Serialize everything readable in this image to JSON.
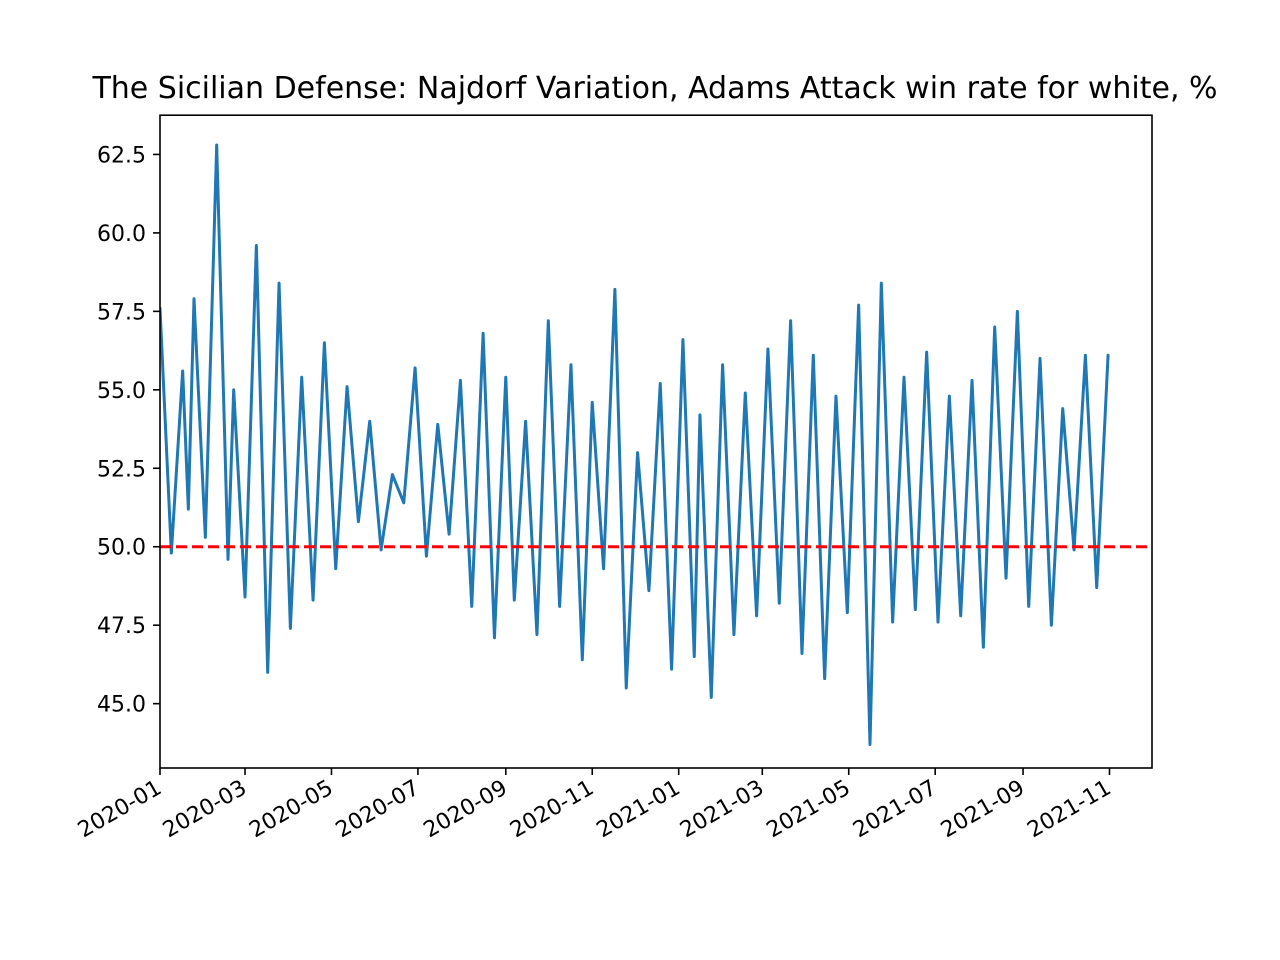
{
  "chart_data": {
    "type": "line",
    "title": "The Sicilian Defense: Najdorf Variation, Adams Attack win rate for white, %",
    "xlabel": "",
    "ylabel": "",
    "x_range": [
      "2020-01-01",
      "2021-12-01"
    ],
    "ylim": [
      42.95,
      63.75
    ],
    "x_ticks": [
      "2020-01",
      "2020-03",
      "2020-05",
      "2020-07",
      "2020-09",
      "2020-11",
      "2021-01",
      "2021-03",
      "2021-05",
      "2021-07",
      "2021-09",
      "2021-11"
    ],
    "y_ticks": [
      "45.0",
      "47.5",
      "50.0",
      "52.5",
      "55.0",
      "57.5",
      "60.0",
      "62.5"
    ],
    "grid": false,
    "legend": "none",
    "series": [
      {
        "color": "#1f77b4",
        "style": "solid",
        "x": [
          "2020-01-01",
          "2020-01-09",
          "2020-01-17",
          "2020-01-21",
          "2020-01-25",
          "2020-02-02",
          "2020-02-10",
          "2020-02-18",
          "2020-02-22",
          "2020-03-01",
          "2020-03-09",
          "2020-03-17",
          "2020-03-25",
          "2020-04-02",
          "2020-04-10",
          "2020-04-18",
          "2020-04-26",
          "2020-05-04",
          "2020-05-12",
          "2020-05-20",
          "2020-05-28",
          "2020-06-05",
          "2020-06-13",
          "2020-06-21",
          "2020-06-29",
          "2020-07-07",
          "2020-07-15",
          "2020-07-23",
          "2020-07-31",
          "2020-08-08",
          "2020-08-16",
          "2020-08-24",
          "2020-09-01",
          "2020-09-07",
          "2020-09-15",
          "2020-09-23",
          "2020-10-01",
          "2020-10-09",
          "2020-10-17",
          "2020-10-25",
          "2020-11-01",
          "2020-11-09",
          "2020-11-17",
          "2020-11-25",
          "2020-12-03",
          "2020-12-11",
          "2020-12-19",
          "2020-12-27",
          "2021-01-04",
          "2021-01-12",
          "2021-01-16",
          "2021-01-24",
          "2021-02-01",
          "2021-02-09",
          "2021-02-17",
          "2021-02-25",
          "2021-03-05",
          "2021-03-13",
          "2021-03-21",
          "2021-03-29",
          "2021-04-06",
          "2021-04-14",
          "2021-04-22",
          "2021-04-30",
          "2021-05-08",
          "2021-05-16",
          "2021-05-24",
          "2021-06-01",
          "2021-06-09",
          "2021-06-17",
          "2021-06-25",
          "2021-07-03",
          "2021-07-11",
          "2021-07-19",
          "2021-07-27",
          "2021-08-04",
          "2021-08-12",
          "2021-08-20",
          "2021-08-28",
          "2021-09-05",
          "2021-09-13",
          "2021-09-21",
          "2021-09-29",
          "2021-10-07",
          "2021-10-15",
          "2021-10-23",
          "2021-10-31"
        ],
        "values": [
          57.6,
          49.8,
          55.6,
          51.2,
          57.9,
          50.3,
          62.8,
          49.6,
          55.0,
          48.4,
          59.6,
          46.0,
          58.4,
          47.4,
          55.4,
          48.3,
          56.5,
          49.3,
          55.1,
          50.8,
          54.0,
          49.9,
          52.3,
          51.4,
          55.7,
          49.7,
          53.9,
          50.4,
          55.3,
          48.1,
          56.8,
          47.1,
          55.4,
          48.3,
          54.0,
          47.2,
          57.2,
          48.1,
          55.8,
          46.4,
          54.6,
          49.3,
          58.2,
          45.5,
          53.0,
          48.6,
          55.2,
          46.1,
          56.6,
          46.5,
          54.2,
          45.2,
          55.8,
          47.2,
          54.9,
          47.8,
          56.3,
          48.2,
          57.2,
          46.6,
          56.1,
          45.8,
          54.8,
          47.9,
          57.7,
          43.7,
          58.4,
          47.6,
          55.4,
          48.0,
          56.2,
          47.6,
          54.8,
          47.8,
          55.3,
          46.8,
          57.0,
          49.0,
          57.5,
          48.1,
          56.0,
          47.5,
          54.4,
          49.9,
          56.1,
          48.7,
          56.1
        ]
      }
    ],
    "reference_line": {
      "value": 50.0,
      "color": "#ff0000",
      "style": "dashed"
    }
  }
}
